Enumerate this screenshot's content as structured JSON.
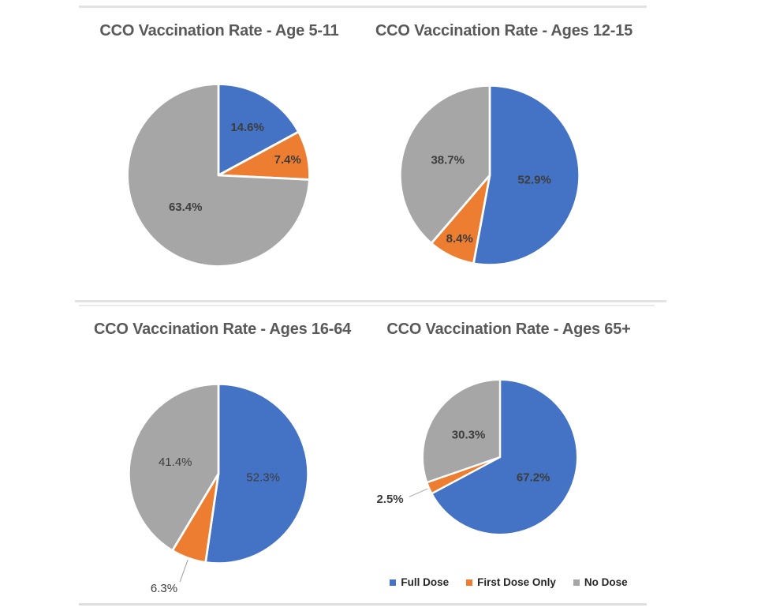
{
  "page": {
    "background": "#FFFFFF"
  },
  "colors": {
    "series": [
      "#4472C4",
      "#ED7D31",
      "#A6A6A6"
    ],
    "title_text": "#595959",
    "data_label_text": "#3D3D3D",
    "legend_text": "#262626",
    "leader_line": "#A6A6A6",
    "separator": "#E2E2E2"
  },
  "legend": {
    "position": "below-bottom-right-chart",
    "items": [
      {
        "label": "Full Dose",
        "color": "#4472C4"
      },
      {
        "label": "First Dose Only",
        "color": "#ED7D31"
      },
      {
        "label": "No Dose",
        "color": "#A6A6A6"
      }
    ]
  },
  "chart_data": [
    {
      "type": "pie",
      "title": "CCO Vaccination Rate - Age 5-11",
      "categories": [
        "Full Dose",
        "First Dose Only",
        "No Dose"
      ],
      "values": [
        14.6,
        7.4,
        63.4
      ],
      "data_labels": [
        "14.6%",
        "7.4%",
        "63.4%"
      ],
      "label_placement": [
        "inside",
        "inside",
        "inside"
      ],
      "label_style": "bold",
      "start_angle_deg": 0,
      "direction": "clockwise"
    },
    {
      "type": "pie",
      "title": "CCO Vaccination Rate  - Ages 12-15",
      "categories": [
        "Full Dose",
        "First Dose Only",
        "No Dose"
      ],
      "values": [
        52.9,
        8.4,
        38.7
      ],
      "data_labels": [
        "52.9%",
        "8.4%",
        "38.7%"
      ],
      "label_placement": [
        "inside",
        "inside",
        "inside"
      ],
      "label_style": "bold",
      "start_angle_deg": 0,
      "direction": "clockwise"
    },
    {
      "type": "pie",
      "title": "CCO Vaccination Rate - Ages 16-64",
      "categories": [
        "Full Dose",
        "First Dose Only",
        "No Dose"
      ],
      "values": [
        52.3,
        6.3,
        41.4
      ],
      "data_labels": [
        "52.3%",
        "6.3%",
        "41.4%"
      ],
      "label_placement": [
        "inside",
        "outside",
        "inside"
      ],
      "label_style": "regular",
      "start_angle_deg": 0,
      "direction": "clockwise"
    },
    {
      "type": "pie",
      "title": "CCO Vaccination Rate - Ages 65+",
      "categories": [
        "Full Dose",
        "First Dose Only",
        "No Dose"
      ],
      "values": [
        67.2,
        2.5,
        30.3
      ],
      "data_labels": [
        "67.2%",
        "2.5%",
        "30.3%"
      ],
      "label_placement": [
        "inside",
        "outside",
        "inside"
      ],
      "label_style": "bold",
      "start_angle_deg": 0,
      "direction": "clockwise"
    }
  ]
}
